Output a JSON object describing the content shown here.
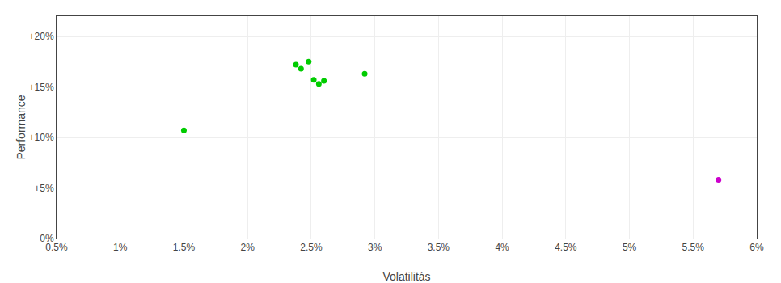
{
  "chart_data": {
    "type": "scatter",
    "xlabel": "Volatilitás",
    "ylabel": "Performance",
    "series": [
      {
        "color": "#00cc00",
        "x": [
          0.015,
          0.0238,
          0.0242,
          0.0248,
          0.0252,
          0.0256,
          0.026,
          0.0292
        ],
        "values": [
          0.107,
          0.172,
          0.168,
          0.175,
          0.157,
          0.153,
          0.156,
          0.163
        ]
      },
      {
        "color": "#cc00cc",
        "x": [
          0.057
        ],
        "values": [
          0.058
        ]
      }
    ],
    "xlim": [
      0.005,
      0.06
    ],
    "ylim": [
      0.0,
      0.22
    ],
    "xticks": [
      {
        "value": 0.005,
        "label": "0.5%"
      },
      {
        "value": 0.01,
        "label": "1%"
      },
      {
        "value": 0.015,
        "label": "1.5%"
      },
      {
        "value": 0.02,
        "label": "2%"
      },
      {
        "value": 0.025,
        "label": "2.5%"
      },
      {
        "value": 0.03,
        "label": "3%"
      },
      {
        "value": 0.035,
        "label": "3.5%"
      },
      {
        "value": 0.04,
        "label": "4%"
      },
      {
        "value": 0.045,
        "label": "4.5%"
      },
      {
        "value": 0.05,
        "label": "5%"
      },
      {
        "value": 0.055,
        "label": "5.5%"
      },
      {
        "value": 0.06,
        "label": "6%"
      }
    ],
    "yticks": [
      {
        "value": 0.0,
        "label": "0%"
      },
      {
        "value": 0.05,
        "label": "+5%"
      },
      {
        "value": 0.1,
        "label": "+10%"
      },
      {
        "value": 0.15,
        "label": "+15%"
      },
      {
        "value": 0.2,
        "label": "+20%"
      }
    ],
    "grid": true
  }
}
